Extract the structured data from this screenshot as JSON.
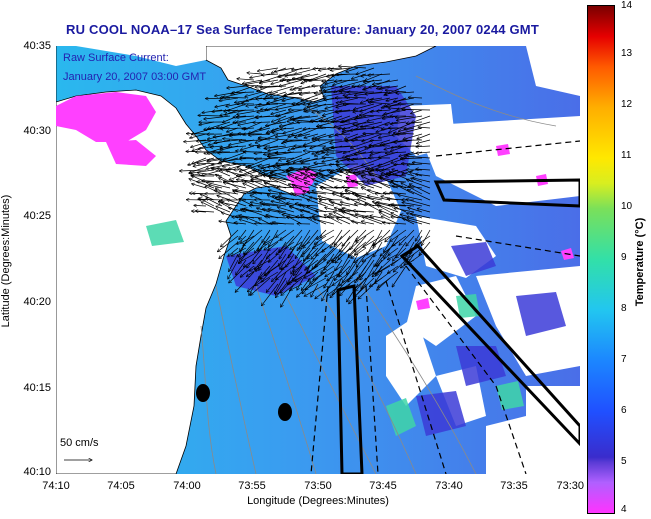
{
  "title": "RU COOL  NOAA–17  Sea Surface Temperature:  January 20, 2007 0244 GMT",
  "overlay": {
    "line1": "Raw Surface Current:",
    "line2": "January 20, 2007 03:00 GMT",
    "scale_label": "50 cm/s"
  },
  "axes": {
    "xlabel": "Longitude (Degrees:Minutes)",
    "ylabel": "Latitude (Degrees:Minutes)",
    "xticks": [
      "74:10",
      "74:05",
      "74:00",
      "73:55",
      "73:50",
      "73:45",
      "73:40",
      "73:35",
      "73:30"
    ],
    "yticks": [
      "40:35",
      "40:30",
      "40:25",
      "40:20",
      "40:15",
      "40:10"
    ]
  },
  "colorbar": {
    "label": "Temperature (°C)",
    "ticks": [
      "14",
      "13",
      "12",
      "11",
      "10",
      "9",
      "8",
      "7",
      "6",
      "5",
      "4"
    ],
    "colors": [
      "#ff33ff",
      "#5a3bd6",
      "#1c86ff",
      "#32e0a8",
      "#ffe800",
      "#ff5a00",
      "#7a0000"
    ]
  },
  "map": {
    "land_color": "#ffffff",
    "water_color": "#2aa8ec",
    "cold_patch_color": "#ff40ff",
    "current_arrow_color": "#000000",
    "stations": [
      "station-1",
      "station-2"
    ]
  }
}
